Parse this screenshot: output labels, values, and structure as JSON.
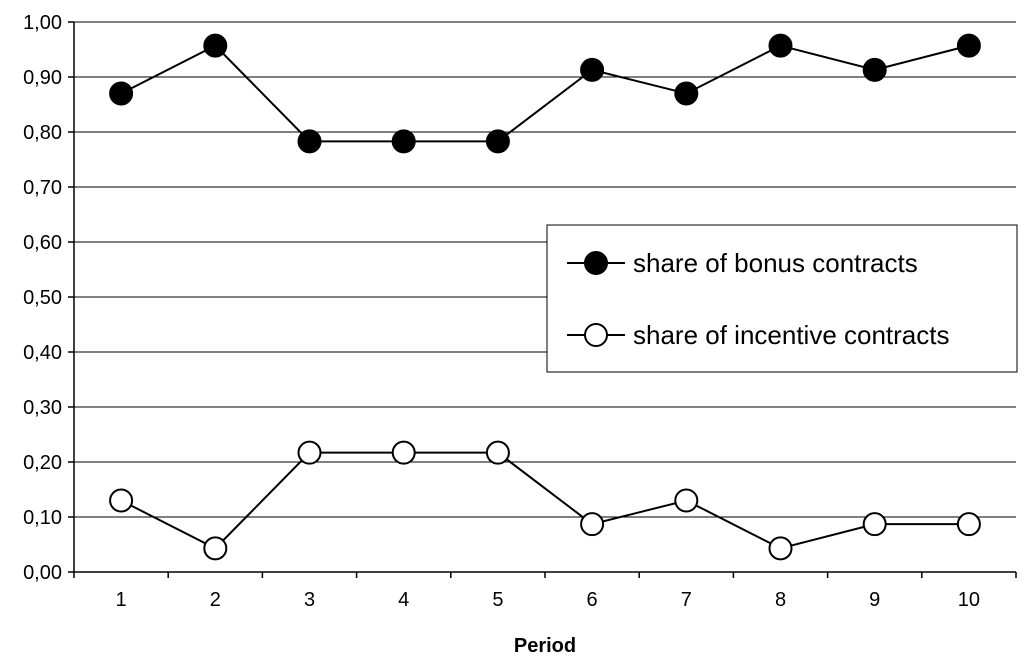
{
  "chart_data": {
    "type": "line",
    "title": "",
    "xlabel": "Period",
    "ylabel": "",
    "categories": [
      "1",
      "2",
      "3",
      "4",
      "5",
      "6",
      "7",
      "8",
      "9",
      "10"
    ],
    "ylim": [
      0,
      1
    ],
    "yticks": [
      "0,00",
      "0,10",
      "0,20",
      "0,30",
      "0,40",
      "0,50",
      "0,60",
      "0,70",
      "0,80",
      "0,90",
      "1,00"
    ],
    "grid": "horizontal",
    "legend_position": "right",
    "series": [
      {
        "name": "share of bonus contracts",
        "marker": "filled-circle",
        "color": "#000000",
        "values": [
          0.87,
          0.957,
          0.783,
          0.783,
          0.783,
          0.913,
          0.87,
          0.957,
          0.913,
          0.957
        ]
      },
      {
        "name": "share of incentive contracts",
        "marker": "open-circle",
        "color": "#000000",
        "values": [
          0.13,
          0.043,
          0.217,
          0.217,
          0.217,
          0.087,
          0.13,
          0.043,
          0.087,
          0.087
        ]
      }
    ]
  }
}
